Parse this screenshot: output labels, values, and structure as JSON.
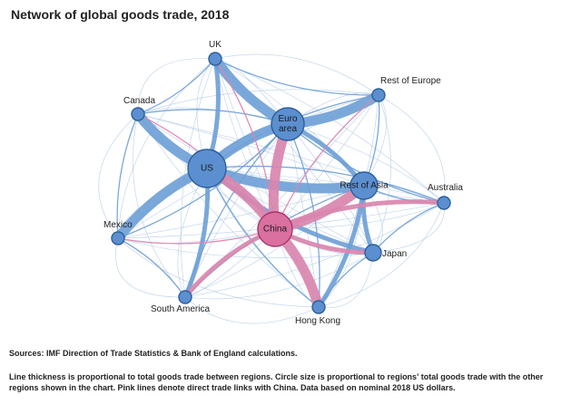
{
  "title": "Network of global goods trade, 2018",
  "footer": {
    "sources": "Sources: IMF Direction of Trade Statistics & Bank of England calculations.",
    "notes": "Line thickness is proportional to total goods trade between regions. Circle size is proportional to regions' total goods trade with the other regions shown in the chart. Pink lines denote direct trade links with China. Data based on nominal 2018 US dollars."
  },
  "colors": {
    "node_fill": "#5b8fcf",
    "node_stroke": "#2d5f9a",
    "china_fill": "#d9709f",
    "china_stroke": "#a8326d",
    "link_blue": "#6d9fd6",
    "link_pink": "#d986ae",
    "thin_link": "#a9c4e4"
  },
  "nodes": [
    {
      "id": "uk",
      "label": "UK",
      "size": "small"
    },
    {
      "id": "rest_of_europe",
      "label": "Rest of Europe",
      "size": "small"
    },
    {
      "id": "canada",
      "label": "Canada",
      "size": "small"
    },
    {
      "id": "euro_area",
      "label": "Euro area",
      "label_lines": [
        "Euro",
        "area"
      ],
      "size": "large"
    },
    {
      "id": "us",
      "label": "US",
      "size": "large"
    },
    {
      "id": "rest_of_asia",
      "label": "Rest of Asia",
      "size": "large"
    },
    {
      "id": "australia",
      "label": "Australia",
      "size": "small"
    },
    {
      "id": "mexico",
      "label": "Mexico",
      "size": "small"
    },
    {
      "id": "china",
      "label": "China",
      "size": "large"
    },
    {
      "id": "japan",
      "label": "Japan",
      "size": "small"
    },
    {
      "id": "south_america",
      "label": "South America",
      "size": "small"
    },
    {
      "id": "hong_kong",
      "label": "Hong Kong",
      "size": "small"
    }
  ],
  "links": [
    {
      "from": "us",
      "to": "canada",
      "weight": "heavy",
      "china": false
    },
    {
      "from": "us",
      "to": "mexico",
      "weight": "heavy",
      "china": false
    },
    {
      "from": "us",
      "to": "euro_area",
      "weight": "heavy",
      "china": false
    },
    {
      "from": "us",
      "to": "rest_of_asia",
      "weight": "heavy",
      "china": false
    },
    {
      "from": "euro_area",
      "to": "uk",
      "weight": "heavy",
      "china": false
    },
    {
      "from": "euro_area",
      "to": "rest_of_europe",
      "weight": "heavy",
      "china": false
    },
    {
      "from": "euro_area",
      "to": "rest_of_asia",
      "weight": "medium",
      "china": false
    },
    {
      "from": "rest_of_asia",
      "to": "japan",
      "weight": "medium",
      "china": false
    },
    {
      "from": "rest_of_asia",
      "to": "hong_kong",
      "weight": "medium",
      "china": false
    },
    {
      "from": "rest_of_asia",
      "to": "australia",
      "weight": "light",
      "china": false
    },
    {
      "from": "uk",
      "to": "us",
      "weight": "medium",
      "china": false
    },
    {
      "from": "us",
      "to": "japan",
      "weight": "medium",
      "china": false
    },
    {
      "from": "us",
      "to": "south_america",
      "weight": "medium",
      "china": false
    },
    {
      "from": "japan",
      "to": "hong_kong",
      "weight": "light",
      "china": false
    },
    {
      "from": "canada",
      "to": "euro_area",
      "weight": "light",
      "china": false
    },
    {
      "from": "mexico",
      "to": "euro_area",
      "weight": "light",
      "china": false
    },
    {
      "from": "south_america",
      "to": "euro_area",
      "weight": "light",
      "china": false
    },
    {
      "from": "rest_of_europe",
      "to": "us",
      "weight": "light",
      "china": false
    },
    {
      "from": "rest_of_europe",
      "to": "rest_of_asia",
      "weight": "light",
      "china": false
    },
    {
      "from": "australia",
      "to": "japan",
      "weight": "light",
      "china": false
    },
    {
      "from": "china",
      "to": "us",
      "weight": "heavy",
      "china": true
    },
    {
      "from": "china",
      "to": "euro_area",
      "weight": "heavy",
      "china": true
    },
    {
      "from": "china",
      "to": "rest_of_asia",
      "weight": "heavy",
      "china": true
    },
    {
      "from": "china",
      "to": "hong_kong",
      "weight": "heavy",
      "china": true
    },
    {
      "from": "china",
      "to": "japan",
      "weight": "medium",
      "china": true
    },
    {
      "from": "china",
      "to": "australia",
      "weight": "medium",
      "china": true
    },
    {
      "from": "china",
      "to": "uk",
      "weight": "light",
      "china": true
    },
    {
      "from": "china",
      "to": "rest_of_europe",
      "weight": "light",
      "china": true
    },
    {
      "from": "china",
      "to": "canada",
      "weight": "light",
      "china": true
    },
    {
      "from": "china",
      "to": "mexico",
      "weight": "light",
      "china": true
    },
    {
      "from": "china",
      "to": "south_america",
      "weight": "medium",
      "china": true
    },
    {
      "from": "uk",
      "to": "canada",
      "weight": "light",
      "china": false
    },
    {
      "from": "uk",
      "to": "rest_of_europe",
      "weight": "light",
      "china": false
    },
    {
      "from": "mexico",
      "to": "south_america",
      "weight": "light",
      "china": false
    },
    {
      "from": "canada",
      "to": "mexico",
      "weight": "light",
      "china": false
    },
    {
      "from": "hong_kong",
      "to": "us",
      "weight": "light",
      "china": false
    },
    {
      "from": "australia",
      "to": "us",
      "weight": "light",
      "china": false
    },
    {
      "from": "south_america",
      "to": "rest_of_asia",
      "weight": "light",
      "china": false
    },
    {
      "from": "hong_kong",
      "to": "euro_area",
      "weight": "light",
      "china": false
    },
    {
      "from": "australia",
      "to": "euro_area",
      "weight": "light",
      "china": false
    }
  ]
}
